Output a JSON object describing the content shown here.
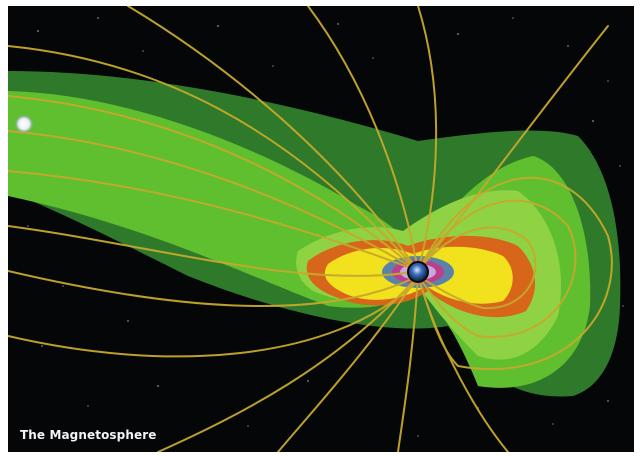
{
  "caption": "The Magnetosphere",
  "colors": {
    "space": "#050608",
    "field_lines": "#c6a92c",
    "outer_green": "#2f7a2a",
    "green": "#5fbf2f",
    "light_green": "#8fd344",
    "orange_belt": "#d7661b",
    "yellow_belt": "#f2e11d",
    "inner_blue": "#4a78b8",
    "inner_magenta": "#c23b8c",
    "moon": "#e9eef5"
  },
  "icons": {
    "earth": "earth-icon",
    "moon": "moon-icon"
  }
}
